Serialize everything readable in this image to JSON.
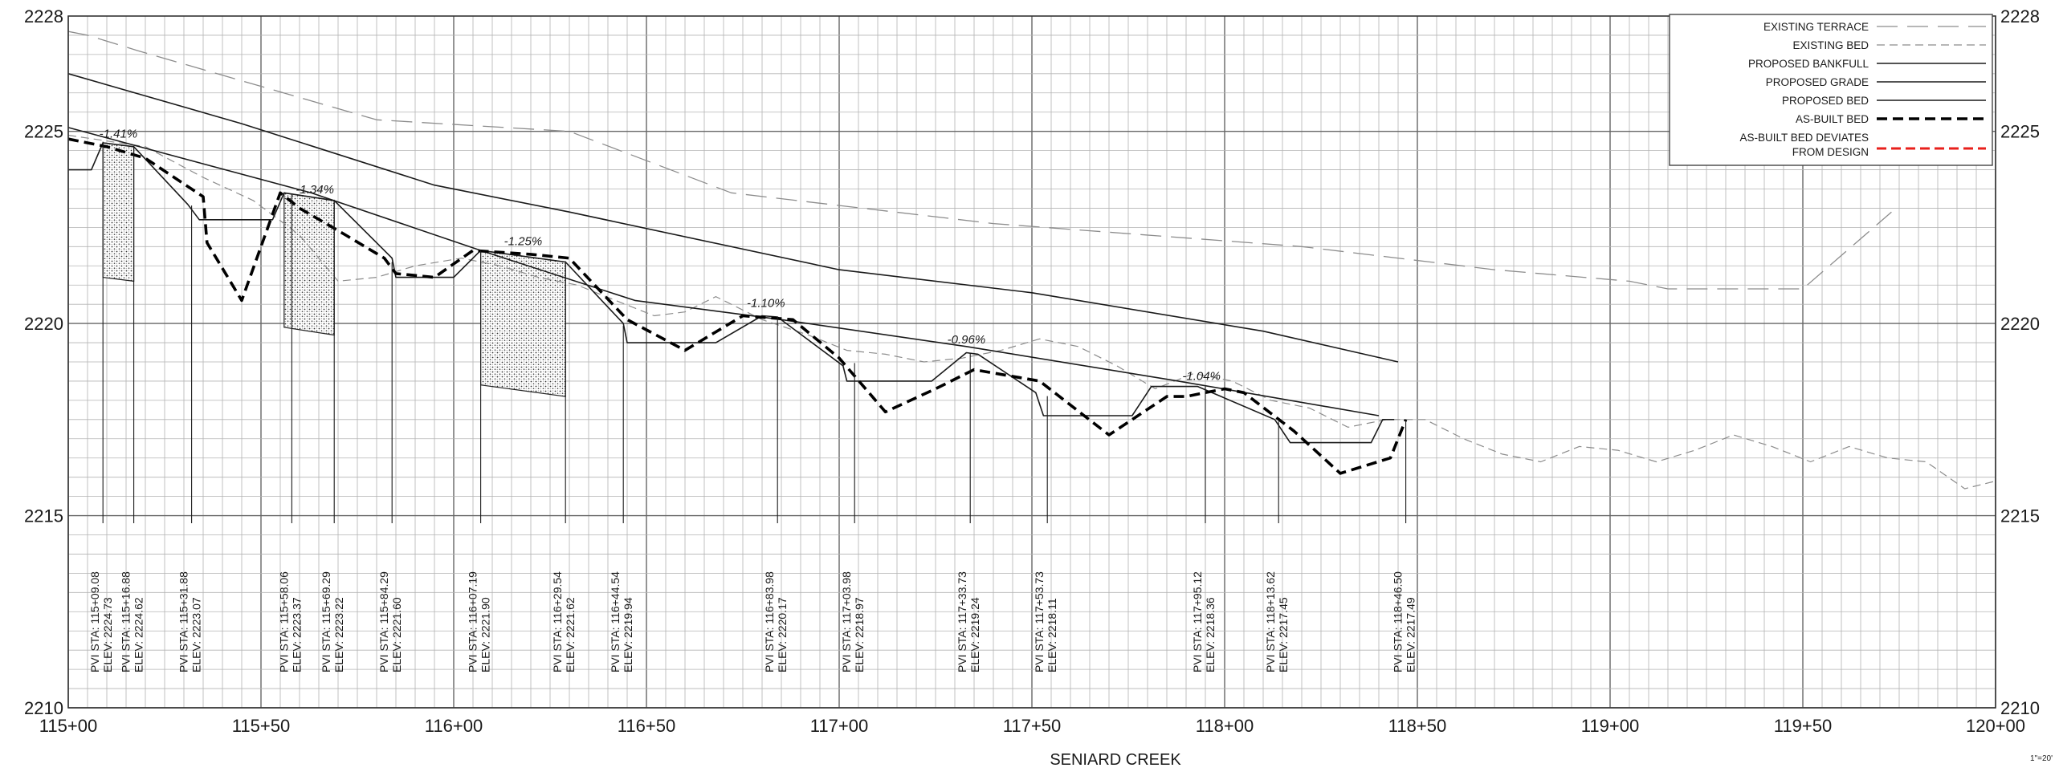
{
  "chart_data": {
    "type": "line",
    "title": "",
    "xlabel": "SENIARD CREEK",
    "ylabel": "",
    "scale_note": "1\"=20'",
    "xlim": [
      11500,
      12000
    ],
    "ylim": [
      2210,
      2228
    ],
    "grid": "on",
    "legend_position": "top-right",
    "x_ticks": [
      11500,
      11550,
      11600,
      11650,
      11700,
      11750,
      11800,
      11850,
      11900,
      11950,
      12000
    ],
    "x_tick_labels": [
      "115+00",
      "115+50",
      "116+00",
      "116+50",
      "117+00",
      "117+50",
      "118+00",
      "118+50",
      "119+00",
      "119+50",
      "120+00"
    ],
    "y_ticks": [
      2210,
      2215,
      2220,
      2225,
      2228
    ],
    "y_tick_labels": [
      "2210",
      "2215",
      "2220",
      "2225",
      "2228"
    ],
    "series": [
      {
        "name": "EXISTING TERRACE",
        "style": "long-dash",
        "color": "#8c8c8c",
        "x": [
          11500,
          11505,
          11518,
          11580,
          11630,
          11672,
          11740,
          11820,
          11870,
          11905,
          11915,
          11950,
          11973
        ],
        "y": [
          2227.6,
          2227.5,
          2227.1,
          2225.3,
          2225.0,
          2223.4,
          2222.6,
          2222.0,
          2221.4,
          2221.1,
          2220.9,
          2220.9,
          2222.9
        ]
      },
      {
        "name": "EXISTING BED",
        "style": "short-dash",
        "color": "#8c8c8c",
        "x": [
          11500,
          11520,
          11535,
          11548,
          11560,
          11570,
          11580,
          11590,
          11602,
          11612,
          11622,
          11632,
          11642,
          11652,
          11660,
          11668,
          11680,
          11692,
          11702,
          11712,
          11722,
          11732,
          11742,
          11752,
          11762,
          11772,
          11782,
          11792,
          11802,
          11812,
          11822,
          11832,
          11842,
          11852,
          11862,
          11872,
          11882,
          11892,
          11902,
          11912,
          11922,
          11932,
          11942,
          11952,
          11962,
          11972,
          11982,
          11992,
          12000
        ],
        "y": [
          2224.9,
          2224.6,
          2223.8,
          2223.2,
          2222.3,
          2221.1,
          2221.2,
          2221.5,
          2221.7,
          2221.5,
          2221.2,
          2221.0,
          2220.6,
          2220.2,
          2220.3,
          2220.7,
          2220.1,
          2219.7,
          2219.3,
          2219.2,
          2219.0,
          2219.1,
          2219.3,
          2219.6,
          2219.4,
          2218.9,
          2218.3,
          2218.7,
          2218.5,
          2218.0,
          2217.8,
          2217.3,
          2217.5,
          2217.5,
          2217.0,
          2216.6,
          2216.4,
          2216.8,
          2216.7,
          2216.4,
          2216.7,
          2217.1,
          2216.8,
          2216.4,
          2216.8,
          2216.5,
          2216.4,
          2215.7,
          2215.9
        ]
      },
      {
        "name": "PROPOSED BANKFULL",
        "style": "solid",
        "color": "#1a1a1a",
        "x": [
          11500,
          11545,
          11595,
          11630,
          11700,
          11750,
          11810,
          11845
        ],
        "y": [
          2226.5,
          2225.2,
          2223.6,
          2222.9,
          2221.4,
          2220.8,
          2219.8,
          2219.0
        ]
      },
      {
        "name": "PROPOSED GRADE",
        "style": "solid",
        "color": "#1a1a1a",
        "x": [
          11500,
          11563,
          11607,
          11647,
          11685,
          11733,
          11788,
          11840
        ],
        "y": [
          2225.1,
          2223.4,
          2221.9,
          2220.6,
          2220.1,
          2219.4,
          2218.5,
          2217.6
        ]
      },
      {
        "name": "PROPOSED BED",
        "style": "solid",
        "color": "#1a1a1a",
        "x": [
          11500,
          11506,
          11509,
          11517,
          11531,
          11534,
          11553,
          11556,
          11569,
          11584,
          11585,
          11600,
          11607,
          11629,
          11644,
          11645,
          11668,
          11680,
          11684,
          11701,
          11702,
          11724,
          11733,
          11736,
          11751,
          11753,
          11776,
          11781,
          11793,
          11813,
          11817,
          11838,
          11841,
          11844
        ],
        "y": [
          2224.0,
          2224.0,
          2224.7,
          2224.6,
          2223.1,
          2222.7,
          2222.7,
          2223.4,
          2223.2,
          2221.7,
          2221.2,
          2221.2,
          2221.9,
          2221.6,
          2220.0,
          2219.5,
          2219.5,
          2220.2,
          2220.17,
          2218.9,
          2218.5,
          2218.5,
          2219.24,
          2219.2,
          2218.2,
          2217.6,
          2217.6,
          2218.36,
          2218.36,
          2217.5,
          2216.9,
          2216.9,
          2217.5,
          2217.5
        ]
      },
      {
        "name": "AS-BUILT BED",
        "style": "heavy-dash",
        "color": "#000000",
        "x": [
          11500,
          11505,
          11510,
          11520,
          11535,
          11536,
          11545,
          11555,
          11560,
          11572,
          11582,
          11585,
          11595,
          11605,
          11620,
          11630,
          11645,
          11660,
          11675,
          11688,
          11700,
          11712,
          11725,
          11735,
          11752,
          11770,
          11785,
          11790,
          11800,
          11805,
          11818,
          11830,
          11843,
          11847
        ],
        "y": [
          2224.8,
          2224.7,
          2224.6,
          2224.3,
          2223.3,
          2222.1,
          2220.6,
          2223.4,
          2223.0,
          2222.3,
          2221.7,
          2221.3,
          2221.2,
          2221.9,
          2221.8,
          2221.7,
          2220.1,
          2219.3,
          2220.2,
          2220.1,
          2219.1,
          2217.7,
          2218.3,
          2218.8,
          2218.5,
          2217.1,
          2218.1,
          2218.1,
          2218.3,
          2218.2,
          2217.2,
          2216.1,
          2216.5,
          2217.5
        ]
      },
      {
        "name": "AS-BUILT BED DEVIATES FROM DESIGN",
        "style": "dash",
        "color": "#e8201c",
        "x": [],
        "y": []
      }
    ],
    "legend_entries": [
      "EXISTING TERRACE",
      "EXISTING BED",
      "PROPOSED BANKFULL",
      "PROPOSED GRADE",
      "PROPOSED BED",
      "AS-BUILT BED",
      "AS-BUILT BED DEVIATES",
      "FROM DESIGN"
    ],
    "stone_structures": [
      {
        "x": [
          11509,
          11517
        ],
        "top": [
          2224.7,
          2224.6
        ],
        "bottom": [
          2221.2,
          2221.1
        ]
      },
      {
        "x": [
          11556,
          11569
        ],
        "top": [
          2223.4,
          2223.2
        ],
        "bottom": [
          2219.9,
          2219.7
        ]
      },
      {
        "x": [
          11607,
          11629
        ],
        "top": [
          2221.9,
          2221.6
        ],
        "bottom": [
          2218.4,
          2218.1
        ]
      }
    ],
    "grade_labels": [
      {
        "text": "-1.41%",
        "x": 11513,
        "y": 2224.75
      },
      {
        "text": "-1.34%",
        "x": 11564,
        "y": 2223.3
      },
      {
        "text": "-1.25%",
        "x": 11618,
        "y": 2221.95
      },
      {
        "text": "-1.10%",
        "x": 11681,
        "y": 2220.35
      },
      {
        "text": "-0.96%",
        "x": 11733,
        "y": 2219.4
      },
      {
        "text": "-1.04%",
        "x": 11794,
        "y": 2218.45
      }
    ],
    "pvi_labels": [
      {
        "x": 11509,
        "y_top": 2224.73,
        "lines": [
          "PVI STA: 115+09.08",
          "ELEV: 2224.73"
        ]
      },
      {
        "x": 11517,
        "y_top": 2224.62,
        "lines": [
          "PVI STA: 115+16.88",
          "ELEV: 2224.62"
        ]
      },
      {
        "x": 11532,
        "y_top": 2223.07,
        "lines": [
          "PVI STA: 115+31.88",
          "ELEV: 2223.07"
        ]
      },
      {
        "x": 11558,
        "y_top": 2223.37,
        "lines": [
          "PVI STA: 115+58.06",
          "ELEV: 2223.37"
        ]
      },
      {
        "x": 11569,
        "y_top": 2223.22,
        "lines": [
          "PVI STA: 115+69.29",
          "ELEV: 2223.22"
        ]
      },
      {
        "x": 11584,
        "y_top": 2221.6,
        "lines": [
          "PVI STA: 115+84.29",
          "ELEV: 2221.60"
        ]
      },
      {
        "x": 11607,
        "y_top": 2221.9,
        "lines": [
          "PVI STA: 116+07.19",
          "ELEV: 2221.90"
        ]
      },
      {
        "x": 11629,
        "y_top": 2221.62,
        "lines": [
          "PVI STA: 116+29.54",
          "ELEV: 2221.62"
        ]
      },
      {
        "x": 11644,
        "y_top": 2219.94,
        "lines": [
          "PVI STA: 116+44.54",
          "ELEV: 2219.94"
        ]
      },
      {
        "x": 11684,
        "y_top": 2220.17,
        "lines": [
          "PVI STA: 116+83.98",
          "ELEV: 2220.17"
        ]
      },
      {
        "x": 11704,
        "y_top": 2218.97,
        "lines": [
          "PVI STA: 117+03.98",
          "ELEV: 2218.97"
        ]
      },
      {
        "x": 11734,
        "y_top": 2219.24,
        "lines": [
          "PVI STA: 117+33.73",
          "ELEV: 2219.24"
        ]
      },
      {
        "x": 11754,
        "y_top": 2218.11,
        "lines": [
          "PVI STA: 117+53.73",
          "ELEV: 2218.11"
        ]
      },
      {
        "x": 11795,
        "y_top": 2218.36,
        "lines": [
          "PVI STA: 117+95.12",
          "ELEV: 2218.36"
        ]
      },
      {
        "x": 11814,
        "y_top": 2217.45,
        "lines": [
          "PVI STA: 118+13.62",
          "ELEV: 2217.45"
        ]
      },
      {
        "x": 11847,
        "y_top": 2217.49,
        "lines": [
          "PVI STA: 118+46.50",
          "ELEV: 2217.49"
        ]
      }
    ]
  }
}
